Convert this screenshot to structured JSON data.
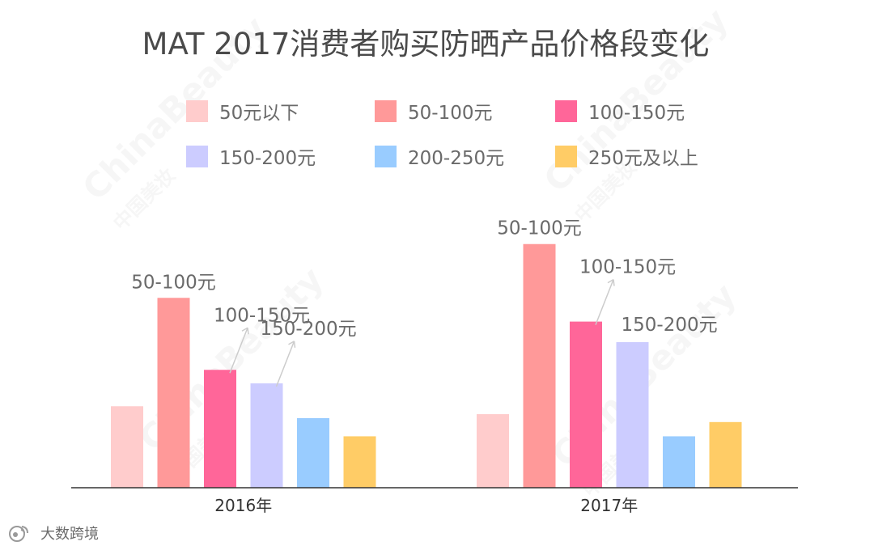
{
  "chart_data": {
    "type": "bar",
    "title": "MAT 2017消费者购买防晒产品价格段变化",
    "categories": [
      "2016年",
      "2017年"
    ],
    "series": [
      {
        "name": "50元以下",
        "color": "#ffcccc",
        "values": [
          103,
          93
        ]
      },
      {
        "name": "50-100元",
        "color": "#ff9999",
        "values": [
          240,
          308
        ]
      },
      {
        "name": "100-150元",
        "color": "#ff6699",
        "values": [
          149,
          210
        ]
      },
      {
        "name": "150-200元",
        "color": "#ccccff",
        "values": [
          132,
          184
        ]
      },
      {
        "name": "200-250元",
        "color": "#99ccff",
        "values": [
          88,
          65
        ]
      },
      {
        "name": "250元及以上",
        "color": "#ffcc66",
        "values": [
          65,
          83
        ]
      }
    ],
    "ylim": [
      0,
      320
    ],
    "xlabel": "",
    "ylabel": "",
    "grid": false,
    "legend_position": "top",
    "annotations": [
      {
        "category": "2016年",
        "series": "50-100元",
        "text": "50-100元",
        "arrow": false
      },
      {
        "category": "2016年",
        "series": "100-150元",
        "text": "100-150元",
        "arrow": true
      },
      {
        "category": "2016年",
        "series": "150-200元",
        "text": "150-200元",
        "arrow": true
      },
      {
        "category": "2017年",
        "series": "50-100元",
        "text": "50-100元",
        "arrow": false
      },
      {
        "category": "2017年",
        "series": "100-150元",
        "text": "100-150元",
        "arrow": true
      },
      {
        "category": "2017年",
        "series": "150-200元",
        "text": "150-200元",
        "arrow": false
      }
    ]
  },
  "branding": {
    "logo_icon": "weibo-icon",
    "source_name": "大数跨境",
    "watermark_main": "ChinaBeauty",
    "watermark_sub": "中国美妆"
  }
}
